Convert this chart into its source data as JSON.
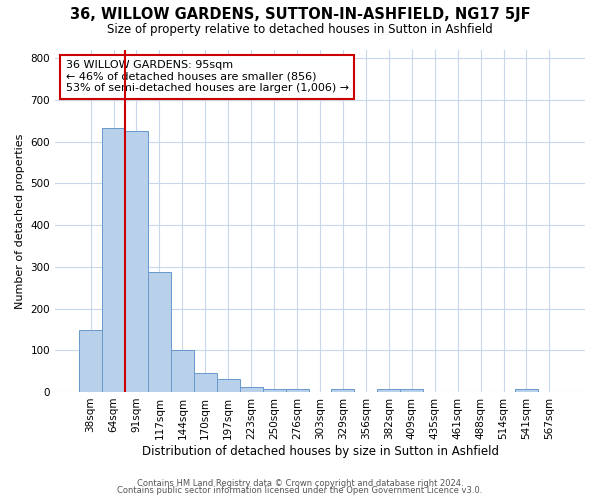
{
  "title": "36, WILLOW GARDENS, SUTTON-IN-ASHFIELD, NG17 5JF",
  "subtitle": "Size of property relative to detached houses in Sutton in Ashfield",
  "xlabel": "Distribution of detached houses by size in Sutton in Ashfield",
  "ylabel": "Number of detached properties",
  "bar_labels": [
    "38sqm",
    "64sqm",
    "91sqm",
    "117sqm",
    "144sqm",
    "170sqm",
    "197sqm",
    "223sqm",
    "250sqm",
    "276sqm",
    "303sqm",
    "329sqm",
    "356sqm",
    "382sqm",
    "409sqm",
    "435sqm",
    "461sqm",
    "488sqm",
    "514sqm",
    "541sqm",
    "567sqm"
  ],
  "bar_values": [
    148,
    632,
    626,
    288,
    101,
    46,
    31,
    12,
    8,
    8,
    0,
    7,
    0,
    7,
    7,
    0,
    0,
    0,
    0,
    7,
    0
  ],
  "bar_color": "#b8d0ea",
  "bar_edge_color": "#6699cc",
  "vline_x": 2.0,
  "vline_color": "#cc0000",
  "annotation_line1": "36 WILLOW GARDENS: 95sqm",
  "annotation_line2": "← 46% of detached houses are smaller (856)",
  "annotation_line3": "53% of semi-detached houses are larger (1,006) →",
  "annotation_box_color": "#ffffff",
  "annotation_box_edge_color": "#cc0000",
  "ylim": [
    0,
    820
  ],
  "yticks": [
    0,
    100,
    200,
    300,
    400,
    500,
    600,
    700,
    800
  ],
  "footer_line1": "Contains HM Land Registry data © Crown copyright and database right 2024.",
  "footer_line2": "Contains public sector information licensed under the Open Government Licence v3.0.",
  "bg_color": "#ffffff",
  "plot_bg_color": "#ffffff",
  "grid_color": "#c8d8ec",
  "title_fontsize": 10.5,
  "subtitle_fontsize": 8.5,
  "ylabel_fontsize": 8,
  "xlabel_fontsize": 8.5,
  "annotation_fontsize": 8,
  "tick_fontsize": 7.5,
  "footer_fontsize": 6
}
